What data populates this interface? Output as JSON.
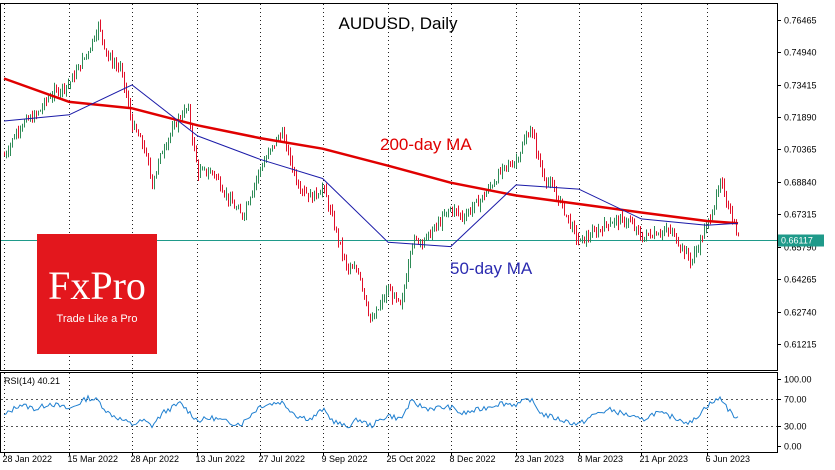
{
  "chart_data": [
    {
      "type": "candlestick",
      "title": "AUDUSD, Daily",
      "instrument": "AUDUSD",
      "timeframe": "Daily",
      "ylim": [
        0.6,
        0.772
      ],
      "y_ticks": [
        "0.76465",
        "0.74940",
        "0.73415",
        "0.71890",
        "0.70365",
        "0.68840",
        "0.67315",
        "0.65790",
        "0.64265",
        "0.62740",
        "0.61215"
      ],
      "x_ticks": [
        "28 Jan 2022",
        "15 Mar 2022",
        "28 Apr 2022",
        "13 Jun 2022",
        "27 Jul 2022",
        "9 Sep 2022",
        "25 Oct 2022",
        "8 Dec 2022",
        "23 Jan 2023",
        "8 Mar 2023",
        "21 Apr 2023",
        "6 Jun 2023"
      ],
      "current_price": "0.66117",
      "price_path": [
        [
          "28 Jan 2022",
          0.701
        ],
        [
          "8 Feb 2022",
          0.715
        ],
        [
          "20 Feb 2022",
          0.72
        ],
        [
          "1 Mar 2022",
          0.729
        ],
        [
          "15 Mar 2022",
          0.735
        ],
        [
          "28 Mar 2022",
          0.75
        ],
        [
          "4 Apr 2022",
          0.762
        ],
        [
          "11 Apr 2022",
          0.747
        ],
        [
          "20 Apr 2022",
          0.741
        ],
        [
          "28 Apr 2022",
          0.715
        ],
        [
          "6 May 2022",
          0.705
        ],
        [
          "12 May 2022",
          0.688
        ],
        [
          "20 May 2022",
          0.705
        ],
        [
          "1 Jun 2022",
          0.72
        ],
        [
          "6 Jun 2022",
          0.723
        ],
        [
          "13 Jun 2022",
          0.693
        ],
        [
          "24 Jun 2022",
          0.693
        ],
        [
          "5 Jul 2022",
          0.68
        ],
        [
          "14 Jul 2022",
          0.672
        ],
        [
          "27 Jul 2022",
          0.695
        ],
        [
          "11 Aug 2022",
          0.712
        ],
        [
          "22 Aug 2022",
          0.688
        ],
        [
          "1 Sep 2022",
          0.681
        ],
        [
          "9 Sep 2022",
          0.686
        ],
        [
          "16 Sep 2022",
          0.67
        ],
        [
          "26 Sep 2022",
          0.647
        ],
        [
          "4 Oct 2022",
          0.647
        ],
        [
          "13 Oct 2022",
          0.622
        ],
        [
          "25 Oct 2022",
          0.638
        ],
        [
          "3 Nov 2022",
          0.629
        ],
        [
          "10 Nov 2022",
          0.66
        ],
        [
          "21 Nov 2022",
          0.662
        ],
        [
          "8 Dec 2022",
          0.676
        ],
        [
          "16 Dec 2022",
          0.672
        ],
        [
          "29 Dec 2022",
          0.68
        ],
        [
          "12 Jan 2023",
          0.693
        ],
        [
          "23 Jan 2023",
          0.699
        ],
        [
          "2 Feb 2023",
          0.714
        ],
        [
          "10 Feb 2023",
          0.693
        ],
        [
          "22 Feb 2023",
          0.68
        ],
        [
          "8 Mar 2023",
          0.66
        ],
        [
          "20 Mar 2023",
          0.665
        ],
        [
          "30 Mar 2023",
          0.67
        ],
        [
          "12 Apr 2023",
          0.67
        ],
        [
          "21 Apr 2023",
          0.662
        ],
        [
          "1 May 2023",
          0.665
        ],
        [
          "12 May 2023",
          0.665
        ],
        [
          "26 May 2023",
          0.651
        ],
        [
          "6 Jun 2023",
          0.668
        ],
        [
          "16 Jun 2023",
          0.688
        ],
        [
          "22 Jun 2023",
          0.675
        ],
        [
          "28 Jun 2023",
          0.662
        ]
      ],
      "series": [
        {
          "name": "200-day MA",
          "color": "#e00000",
          "points": [
            [
              "28 Jan 2022",
              0.737
            ],
            [
              "15 Mar 2022",
              0.726
            ],
            [
              "28 Apr 2022",
              0.723
            ],
            [
              "13 Jun 2022",
              0.715
            ],
            [
              "27 Jul 2022",
              0.709
            ],
            [
              "9 Sep 2022",
              0.704
            ],
            [
              "25 Oct 2022",
              0.696
            ],
            [
              "8 Dec 2022",
              0.688
            ],
            [
              "23 Jan 2023",
              0.682
            ],
            [
              "8 Mar 2023",
              0.678
            ],
            [
              "21 Apr 2023",
              0.674
            ],
            [
              "6 Jun 2023",
              0.67
            ],
            [
              "28 Jun 2023",
              0.669
            ]
          ]
        },
        {
          "name": "50-day MA",
          "color": "#1a1aa8",
          "points": [
            [
              "28 Jan 2022",
              0.717
            ],
            [
              "15 Mar 2022",
              0.72
            ],
            [
              "28 Apr 2022",
              0.734
            ],
            [
              "13 Jun 2022",
              0.71
            ],
            [
              "27 Jul 2022",
              0.699
            ],
            [
              "9 Sep 2022",
              0.69
            ],
            [
              "25 Oct 2022",
              0.66
            ],
            [
              "8 Dec 2022",
              0.658
            ],
            [
              "23 Jan 2023",
              0.687
            ],
            [
              "8 Mar 2023",
              0.685
            ],
            [
              "21 Apr 2023",
              0.671
            ],
            [
              "6 Jun 2023",
              0.668
            ],
            [
              "28 Jun 2023",
              0.669
            ]
          ]
        }
      ],
      "annotations": [
        "200-day MA",
        "50-day MA"
      ]
    },
    {
      "type": "line",
      "title": "RSI(14) 40.21",
      "indicator": "RSI(14)",
      "value": 40.21,
      "ylim": [
        0,
        100
      ],
      "y_ticks": [
        "100.00",
        "70.00",
        "30.00",
        "0.00"
      ],
      "levels": [
        70,
        30
      ],
      "series": [
        {
          "color": "#1e7fd0",
          "points": [
            [
              "28 Jan 2022",
              45
            ],
            [
              "8 Feb 2022",
              62
            ],
            [
              "20 Feb 2022",
              55
            ],
            [
              "1 Mar 2022",
              64
            ],
            [
              "15 Mar 2022",
              55
            ],
            [
              "28 Mar 2022",
              72
            ],
            [
              "4 Apr 2022",
              68
            ],
            [
              "11 Apr 2022",
              50
            ],
            [
              "20 Apr 2022",
              40
            ],
            [
              "28 Apr 2022",
              32
            ],
            [
              "6 May 2022",
              38
            ],
            [
              "12 May 2022",
              30
            ],
            [
              "20 May 2022",
              50
            ],
            [
              "1 Jun 2022",
              64
            ],
            [
              "13 Jun 2022",
              38
            ],
            [
              "24 Jun 2022",
              42
            ],
            [
              "5 Jul 2022",
              35
            ],
            [
              "14 Jul 2022",
              33
            ],
            [
              "27 Jul 2022",
              60
            ],
            [
              "11 Aug 2022",
              66
            ],
            [
              "22 Aug 2022",
              45
            ],
            [
              "1 Sep 2022",
              40
            ],
            [
              "9 Sep 2022",
              55
            ],
            [
              "16 Sep 2022",
              38
            ],
            [
              "26 Sep 2022",
              28
            ],
            [
              "4 Oct 2022",
              40
            ],
            [
              "13 Oct 2022",
              30
            ],
            [
              "25 Oct 2022",
              46
            ],
            [
              "3 Nov 2022",
              40
            ],
            [
              "10 Nov 2022",
              66
            ],
            [
              "21 Nov 2022",
              56
            ],
            [
              "8 Dec 2022",
              58
            ],
            [
              "16 Dec 2022",
              48
            ],
            [
              "29 Dec 2022",
              55
            ],
            [
              "12 Jan 2023",
              64
            ],
            [
              "23 Jan 2023",
              62
            ],
            [
              "2 Feb 2023",
              70
            ],
            [
              "10 Feb 2023",
              48
            ],
            [
              "22 Feb 2023",
              40
            ],
            [
              "8 Mar 2023",
              32
            ],
            [
              "20 Mar 2023",
              48
            ],
            [
              "30 Mar 2023",
              54
            ],
            [
              "12 Apr 2023",
              46
            ],
            [
              "21 Apr 2023",
              38
            ],
            [
              "1 May 2023",
              50
            ],
            [
              "12 May 2023",
              44
            ],
            [
              "26 May 2023",
              34
            ],
            [
              "6 Jun 2023",
              60
            ],
            [
              "16 Jun 2023",
              72
            ],
            [
              "22 Jun 2023",
              52
            ],
            [
              "28 Jun 2023",
              40
            ]
          ]
        }
      ]
    }
  ],
  "logo": {
    "brand": "FxPro",
    "tagline": "Trade Like a Pro",
    "color": "#e3171d"
  }
}
